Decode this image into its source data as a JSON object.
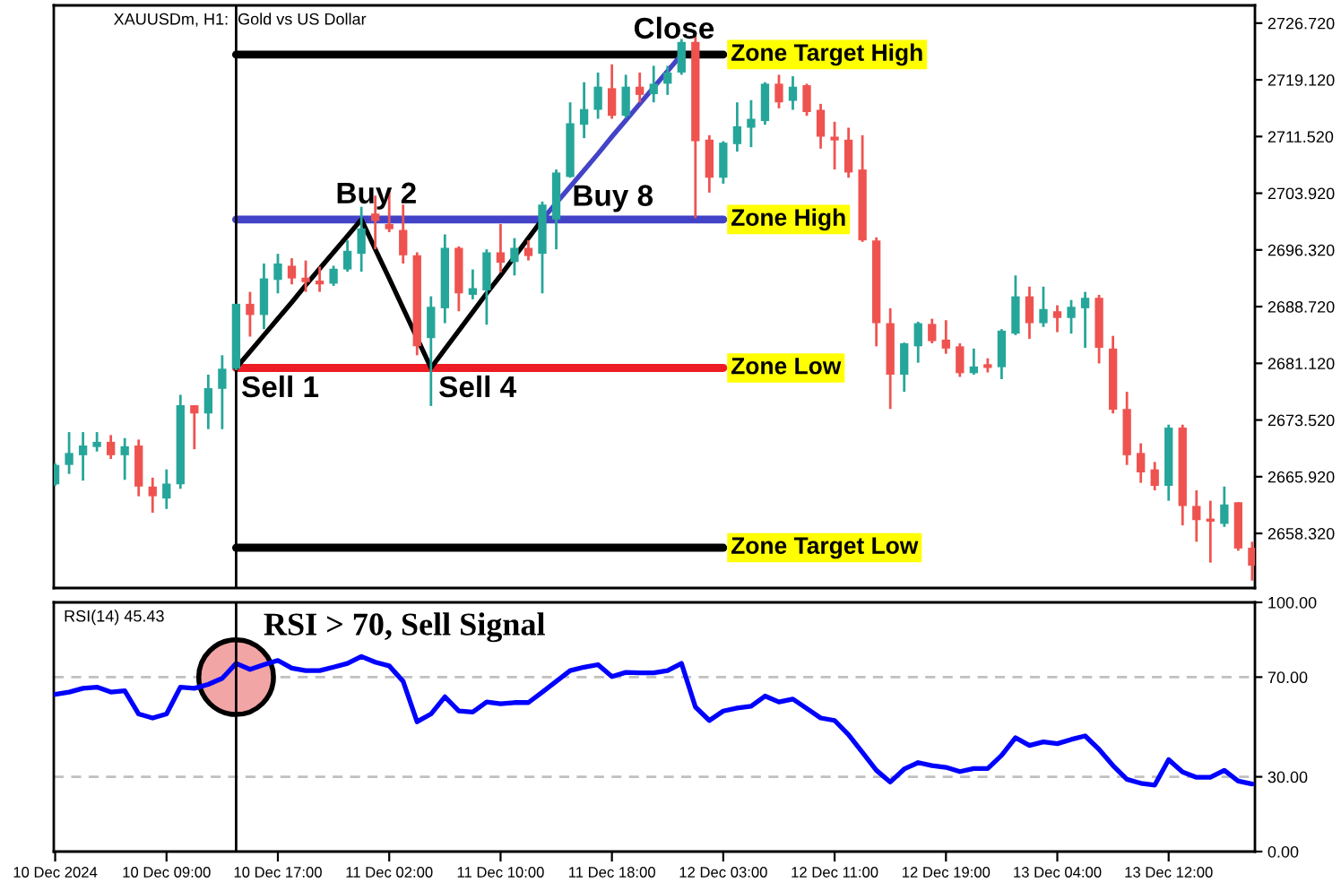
{
  "chart_data": [
    {
      "type": "candlestick",
      "title": "XAUUSDm, H1:  Gold vs US Dollar",
      "categories": [
        null,
        null,
        null,
        null,
        null,
        null,
        null,
        null,
        null,
        null,
        null,
        null,
        null,
        null,
        null,
        null,
        null,
        null,
        null,
        null,
        null,
        null,
        null,
        null,
        null,
        null,
        null,
        null,
        null,
        null,
        null,
        null,
        null,
        null,
        null,
        null,
        null,
        null,
        null,
        null,
        null,
        null,
        null,
        null,
        null,
        null,
        null,
        null,
        null,
        null,
        null,
        null,
        null,
        null,
        null,
        null,
        null,
        null,
        null,
        null,
        null,
        null,
        null,
        null,
        null,
        null,
        null,
        null,
        null,
        null,
        null,
        null,
        null,
        null,
        null,
        null,
        null,
        null,
        null,
        null,
        null,
        null,
        null,
        null,
        null,
        null,
        null
      ],
      "ohlc": [
        [
          2664.9,
          2667.7,
          2664.7,
          2667.5
        ],
        [
          2667.5,
          2671.9,
          2666.3,
          2669.1
        ],
        [
          2668.8,
          2671.9,
          2665.4,
          2670.1
        ],
        [
          2669.9,
          2671.9,
          2669.3,
          2670.6
        ],
        [
          2670.6,
          2671.5,
          2668.3,
          2668.8
        ],
        [
          2668.8,
          2671.1,
          2665.5,
          2670.0
        ],
        [
          2670.1,
          2670.9,
          2663.3,
          2664.6
        ],
        [
          2664.6,
          2665.8,
          2661.1,
          2663.3
        ],
        [
          2663.0,
          2666.9,
          2661.6,
          2665.0
        ],
        [
          2664.9,
          2676.9,
          2664.3,
          2675.5
        ],
        [
          2675.5,
          2675.5,
          2669.6,
          2674.4
        ],
        [
          2674.4,
          2679.6,
          2672.3,
          2677.8
        ],
        [
          2677.7,
          2682.2,
          2672.3,
          2680.4
        ],
        [
          2680.4,
          2689.1,
          2680.2,
          2689.1
        ],
        [
          2689.1,
          2690.7,
          2684.7,
          2687.6
        ],
        [
          2687.6,
          2694.5,
          2685.7,
          2692.5
        ],
        [
          2692.3,
          2695.8,
          2690.5,
          2694.5
        ],
        [
          2694.2,
          2695.2,
          2691.7,
          2692.5
        ],
        [
          2692.6,
          2694.9,
          2690.7,
          2692.0
        ],
        [
          2692.2,
          2694.1,
          2690.7,
          2691.7
        ],
        [
          2691.8,
          2694.2,
          2691.5,
          2693.8
        ],
        [
          2693.7,
          2697.6,
          2693.4,
          2696.2
        ],
        [
          2695.8,
          2702.1,
          2693.4,
          2699.2
        ],
        [
          2701.2,
          2703.6,
          2696.4,
          2700.2
        ],
        [
          2699.8,
          2704.5,
          2698.7,
          2699.1
        ],
        [
          2699.0,
          2702.4,
          2694.5,
          2695.6
        ],
        [
          2695.6,
          2696.0,
          2682.2,
          2683.4
        ],
        [
          2684.5,
          2690.1,
          2675.4,
          2688.7
        ],
        [
          2688.5,
          2698.4,
          2686.5,
          2696.6
        ],
        [
          2696.6,
          2696.8,
          2688.1,
          2690.5
        ],
        [
          2690.3,
          2693.7,
          2689.7,
          2691.2
        ],
        [
          2690.9,
          2696.4,
          2686.3,
          2696.0
        ],
        [
          2696.0,
          2699.8,
          2693.3,
          2694.6
        ],
        [
          2694.7,
          2697.9,
          2692.9,
          2696.6
        ],
        [
          2696.6,
          2697.6,
          2694.9,
          2695.5
        ],
        [
          2695.8,
          2702.8,
          2690.5,
          2702.4
        ],
        [
          2700.4,
          2707.1,
          2696.4,
          2706.7
        ],
        [
          2706.1,
          2716.1,
          2706.0,
          2713.3
        ],
        [
          2713.1,
          2718.8,
          2711.3,
          2715.2
        ],
        [
          2715.1,
          2720.1,
          2713.9,
          2718.2
        ],
        [
          2718.0,
          2721.2,
          2713.9,
          2714.3
        ],
        [
          2714.3,
          2719.8,
          2714.0,
          2718.2
        ],
        [
          2718.2,
          2720.1,
          2716.1,
          2717.1
        ],
        [
          2717.2,
          2721.0,
          2716.1,
          2718.6
        ],
        [
          2718.6,
          2721.0,
          2717.1,
          2720.1
        ],
        [
          2720.1,
          2724.6,
          2719.8,
          2724.2
        ],
        [
          2724.2,
          2725.1,
          2700.6,
          2710.9
        ],
        [
          2711.1,
          2711.7,
          2704.0,
          2706.0
        ],
        [
          2706.0,
          2710.9,
          2705.2,
          2710.7
        ],
        [
          2710.5,
          2716.1,
          2709.5,
          2712.9
        ],
        [
          2712.7,
          2716.4,
          2710.1,
          2713.9
        ],
        [
          2713.6,
          2718.8,
          2713.1,
          2718.6
        ],
        [
          2718.6,
          2719.8,
          2715.3,
          2716.1
        ],
        [
          2716.3,
          2719.6,
          2715.1,
          2718.2
        ],
        [
          2718.4,
          2718.6,
          2714.3,
          2714.8
        ],
        [
          2715.1,
          2715.9,
          2709.9,
          2711.5
        ],
        [
          2711.5,
          2713.5,
          2707.1,
          2711.0
        ],
        [
          2711.1,
          2712.7,
          2706.0,
          2706.7
        ],
        [
          2707.1,
          2711.7,
          2697.4,
          2697.6
        ],
        [
          2697.6,
          2698.0,
          2683.4,
          2686.5
        ],
        [
          2686.5,
          2688.5,
          2675.0,
          2679.6
        ],
        [
          2679.6,
          2683.9,
          2677.3,
          2683.8
        ],
        [
          2683.4,
          2686.7,
          2681.2,
          2686.5
        ],
        [
          2686.4,
          2687.1,
          2683.8,
          2684.1
        ],
        [
          2684.3,
          2686.9,
          2682.4,
          2683.1
        ],
        [
          2683.4,
          2683.8,
          2679.3,
          2679.8
        ],
        [
          2679.8,
          2683.1,
          2679.6,
          2680.7
        ],
        [
          2681.0,
          2681.8,
          2679.9,
          2680.5
        ],
        [
          2680.6,
          2685.7,
          2679.0,
          2685.5
        ],
        [
          2685.1,
          2692.9,
          2684.9,
          2690.1
        ],
        [
          2690.1,
          2691.4,
          2684.4,
          2686.5
        ],
        [
          2686.5,
          2691.4,
          2686.0,
          2688.4
        ],
        [
          2688.1,
          2688.9,
          2685.3,
          2687.2
        ],
        [
          2687.2,
          2689.6,
          2685.1,
          2688.7
        ],
        [
          2688.5,
          2690.7,
          2683.2,
          2689.9
        ],
        [
          2689.9,
          2690.3,
          2681.1,
          2683.2
        ],
        [
          2683.1,
          2684.8,
          2674.4,
          2674.9
        ],
        [
          2675.0,
          2677.3,
          2667.5,
          2668.8
        ],
        [
          2669.1,
          2670.4,
          2665.1,
          2666.5
        ],
        [
          2666.9,
          2667.9,
          2664.1,
          2664.7
        ],
        [
          2664.7,
          2672.9,
          2662.7,
          2672.5
        ],
        [
          2672.5,
          2672.9,
          2659.4,
          2662.0
        ],
        [
          2662.0,
          2664.1,
          2657.2,
          2660.1
        ],
        [
          2660.3,
          2662.7,
          2654.4,
          2659.9
        ],
        [
          2659.6,
          2664.6,
          2659.2,
          2662.2
        ],
        [
          2662.5,
          2662.5,
          2656.0,
          2656.3
        ],
        [
          2656.4,
          2657.2,
          2652.0,
          2654.0
        ]
      ],
      "colors": [
        "#26a69a",
        "#26a69a",
        "#26a69a",
        "#26a69a",
        "#ef5350",
        "#26a69a",
        "#ef5350",
        "#ef5350",
        "#26a69a",
        "#26a69a",
        "#ef5350",
        "#26a69a",
        "#26a69a",
        "#26a69a",
        "#ef5350",
        "#26a69a",
        "#26a69a",
        "#ef5350",
        "#ef5350",
        "#ef5350",
        "#26a69a",
        "#26a69a",
        "#26a69a",
        "#ef5350",
        "#ef5350",
        "#ef5350",
        "#ef5350",
        "#26a69a",
        "#26a69a",
        "#ef5350",
        "#26a69a",
        "#26a69a",
        "#ef5350",
        "#26a69a",
        "#ef5350",
        "#26a69a",
        "#26a69a",
        "#26a69a",
        "#26a69a",
        "#26a69a",
        "#ef5350",
        "#26a69a",
        "#ef5350",
        "#26a69a",
        "#26a69a",
        "#26a69a",
        "#ef5350",
        "#ef5350",
        "#26a69a",
        "#26a69a",
        "#26a69a",
        "#26a69a",
        "#ef5350",
        "#26a69a",
        "#ef5350",
        "#ef5350",
        "#ef5350",
        "#ef5350",
        "#ef5350",
        "#ef5350",
        "#ef5350",
        "#26a69a",
        "#26a69a",
        "#ef5350",
        "#ef5350",
        "#ef5350",
        "#26a69a",
        "#ef5350",
        "#26a69a",
        "#26a69a",
        "#ef5350",
        "#26a69a",
        "#ef5350",
        "#26a69a",
        "#26a69a",
        "#ef5350",
        "#ef5350",
        "#ef5350",
        "#ef5350",
        "#ef5350",
        "#26a69a",
        "#ef5350",
        "#ef5350",
        "#ef5350",
        "#26a69a",
        "#ef5350",
        "#ef5350"
      ],
      "series": [
        {
          "name": "Zone Target High",
          "type": "line",
          "color": "#000000",
          "values": [
            null,
            null,
            null,
            null,
            null,
            null,
            null,
            null,
            null,
            null,
            null,
            null,
            null,
            2722.5,
            2722.5,
            2722.5,
            2722.5,
            2722.5,
            2722.5,
            2722.5,
            2722.5,
            2722.5,
            2722.5,
            2722.5,
            2722.5,
            2722.5,
            2722.5,
            2722.5,
            2722.5,
            2722.5,
            2722.5,
            2722.5,
            2722.5,
            2722.5,
            2722.5,
            2722.5,
            2722.5,
            2722.5,
            2722.5,
            2722.5,
            2722.5,
            2722.5,
            2722.5,
            2722.5,
            2722.5,
            2722.5,
            2722.5,
            2722.5,
            2722.5,
            null,
            null,
            null,
            null,
            null,
            null,
            null,
            null,
            null,
            null,
            null,
            null,
            null,
            null,
            null,
            null,
            null,
            null,
            null,
            null,
            null,
            null,
            null,
            null,
            null,
            null,
            null,
            null,
            null,
            null,
            null,
            null,
            null,
            null,
            null,
            null,
            null,
            null
          ]
        },
        {
          "name": "Zone High",
          "type": "line",
          "color": "#4343c8",
          "values": [
            null,
            null,
            null,
            null,
            null,
            null,
            null,
            null,
            null,
            null,
            null,
            null,
            null,
            2700.4,
            2700.4,
            2700.4,
            2700.4,
            2700.4,
            2700.4,
            2700.4,
            2700.4,
            2700.4,
            2700.4,
            2700.4,
            2700.4,
            2700.4,
            2700.4,
            2700.4,
            2700.4,
            2700.4,
            2700.4,
            2700.4,
            2700.4,
            2700.4,
            2700.4,
            2700.4,
            2700.4,
            2700.4,
            2700.4,
            2700.4,
            2700.4,
            2700.4,
            2700.4,
            2700.4,
            2700.4,
            2700.4,
            2700.4,
            2700.4,
            2700.4,
            null,
            null,
            null,
            null,
            null,
            null,
            null,
            null,
            null,
            null,
            null,
            null,
            null,
            null,
            null,
            null,
            null,
            null,
            null,
            null,
            null,
            null,
            null,
            null,
            null,
            null,
            null,
            null,
            null,
            null,
            null,
            null,
            null,
            null,
            null,
            null,
            null,
            null
          ]
        },
        {
          "name": "Zone Low",
          "type": "line",
          "color": "#ed1c24",
          "values": [
            null,
            null,
            null,
            null,
            null,
            null,
            null,
            null,
            null,
            null,
            null,
            null,
            null,
            2680.5,
            2680.5,
            2680.5,
            2680.5,
            2680.5,
            2680.5,
            2680.5,
            2680.5,
            2680.5,
            2680.5,
            2680.5,
            2680.5,
            2680.5,
            2680.5,
            2680.5,
            2680.5,
            2680.5,
            2680.5,
            2680.5,
            2680.5,
            2680.5,
            2680.5,
            2680.5,
            2680.5,
            2680.5,
            2680.5,
            2680.5,
            2680.5,
            2680.5,
            2680.5,
            2680.5,
            2680.5,
            2680.5,
            2680.5,
            2680.5,
            2680.5,
            null,
            null,
            null,
            null,
            null,
            null,
            null,
            null,
            null,
            null,
            null,
            null,
            null,
            null,
            null,
            null,
            null,
            null,
            null,
            null,
            null,
            null,
            null,
            null,
            null,
            null,
            null,
            null,
            null,
            null,
            null,
            null,
            null,
            null,
            null,
            null,
            null,
            null
          ]
        },
        {
          "name": "Zone Target Low",
          "type": "line",
          "color": "#000000",
          "values": [
            null,
            null,
            null,
            null,
            null,
            null,
            null,
            null,
            null,
            null,
            null,
            null,
            null,
            2656.4,
            2656.4,
            2656.4,
            2656.4,
            2656.4,
            2656.4,
            2656.4,
            2656.4,
            2656.4,
            2656.4,
            2656.4,
            2656.4,
            2656.4,
            2656.4,
            2656.4,
            2656.4,
            2656.4,
            2656.4,
            2656.4,
            2656.4,
            2656.4,
            2656.4,
            2656.4,
            2656.4,
            2656.4,
            2656.4,
            2656.4,
            2656.4,
            2656.4,
            2656.4,
            2656.4,
            2656.4,
            2656.4,
            2656.4,
            2656.4,
            2656.4,
            null,
            null,
            null,
            null,
            null,
            null,
            null,
            null,
            null,
            null,
            null,
            null,
            null,
            null,
            null,
            null,
            null,
            null,
            null,
            null,
            null,
            null,
            null,
            null,
            null,
            null,
            null,
            null,
            null,
            null,
            null,
            null,
            null,
            null,
            null,
            null,
            null,
            null
          ]
        },
        {
          "type": "line",
          "color": "#000000",
          "values": [
            null,
            null,
            null,
            null,
            null,
            null,
            null,
            null,
            null,
            null,
            null,
            null,
            null,
            2680.5,
            2682.7,
            2684.9,
            2687.1,
            2689.3,
            2691.6,
            2693.8,
            2696.0,
            2698.2,
            2700.4,
            2696.4,
            2692.5,
            2688.5,
            2684.5,
            2680.5,
            2683.0,
            2685.5,
            2688.0,
            2690.5,
            2692.9,
            2695.4,
            2697.9,
            2700.4,
            null,
            null,
            null,
            null,
            null,
            null,
            null,
            null,
            null,
            null,
            null,
            null,
            null,
            null,
            null,
            null,
            null,
            null,
            null,
            null,
            null,
            null,
            null,
            null,
            null,
            null,
            null,
            null,
            null,
            null,
            null,
            null,
            null,
            null,
            null,
            null,
            null,
            null,
            null,
            null,
            null,
            null,
            null,
            null,
            null,
            null,
            null,
            null,
            null,
            null,
            null
          ]
        },
        {
          "type": "line",
          "color": "#4343c8",
          "values": [
            null,
            null,
            null,
            null,
            null,
            null,
            null,
            null,
            null,
            null,
            null,
            null,
            null,
            null,
            null,
            null,
            null,
            null,
            null,
            null,
            null,
            null,
            null,
            null,
            null,
            null,
            null,
            null,
            null,
            null,
            null,
            null,
            null,
            null,
            null,
            2700.4,
            2702.6,
            2704.8,
            2707.0,
            2709.2,
            2711.5,
            2713.7,
            2715.9,
            2718.1,
            2720.3,
            2722.5,
            null,
            null,
            null,
            null,
            null,
            null,
            null,
            null,
            null,
            null,
            null,
            null,
            null,
            null,
            null,
            null,
            null,
            null,
            null,
            null,
            null,
            null,
            null,
            null,
            null,
            null,
            null,
            null,
            null,
            null,
            null,
            null,
            null,
            null,
            null,
            null,
            null,
            null,
            null,
            null,
            null
          ]
        }
      ],
      "annotations": [
        {
          "text": "Sell 1",
          "y": 2680.5
        },
        {
          "text": "Buy 2",
          "y": 2700.4
        },
        {
          "text": "Sell 4",
          "y": 2680.5
        },
        {
          "text": "Buy 8",
          "y": 2700.4
        },
        {
          "text": "Close",
          "y": 2722.5
        }
      ],
      "ylim": [
        2651.0,
        2729.1
      ],
      "yticks": [
        {
          "value": 2658.32,
          "label": "2658.320"
        },
        {
          "value": 2665.92,
          "label": "2665.920"
        },
        {
          "value": 2673.52,
          "label": "2673.520"
        },
        {
          "value": 2681.12,
          "label": "2681.120"
        },
        {
          "value": 2688.72,
          "label": "2688.720"
        },
        {
          "value": 2696.32,
          "label": "2696.320"
        },
        {
          "value": 2703.92,
          "label": "2703.920"
        },
        {
          "value": 2711.52,
          "label": "2711.520"
        },
        {
          "value": 2719.12,
          "label": "2719.120"
        },
        {
          "value": 2726.72,
          "label": "2726.720"
        }
      ]
    },
    {
      "type": "line",
      "title": "RSI(14) 45.43",
      "categories": [
        "10 Dec 2024",
        null,
        null,
        null,
        null,
        null,
        null,
        null,
        "10 Dec 09:00",
        null,
        null,
        null,
        null,
        null,
        null,
        null,
        "10 Dec 17:00",
        null,
        null,
        null,
        null,
        null,
        null,
        null,
        "11 Dec 02:00",
        null,
        null,
        null,
        null,
        null,
        null,
        null,
        "11 Dec 10:00",
        null,
        null,
        null,
        null,
        null,
        null,
        null,
        "11 Dec 18:00",
        null,
        null,
        null,
        null,
        null,
        null,
        null,
        "12 Dec 03:00",
        null,
        null,
        null,
        null,
        null,
        null,
        null,
        "12 Dec 11:00",
        null,
        null,
        null,
        null,
        null,
        null,
        null,
        "12 Dec 19:00",
        null,
        null,
        null,
        null,
        null,
        null,
        null,
        "13 Dec 04:00",
        null,
        null,
        null,
        null,
        null,
        null,
        null,
        "13 Dec 12:00",
        null,
        null,
        null,
        null,
        null,
        null
      ],
      "series": [
        {
          "color": "#0000ff",
          "values": [
            63.1,
            64.0,
            65.5,
            66.0,
            64.0,
            64.5,
            55.2,
            53.6,
            55.2,
            66.0,
            65.5,
            67.1,
            69.5,
            75.5,
            73.1,
            75.0,
            76.7,
            73.6,
            72.6,
            72.6,
            74.0,
            75.5,
            78.3,
            76.0,
            74.5,
            68.3,
            52.1,
            55.2,
            62.1,
            56.4,
            56.0,
            60.0,
            59.3,
            59.8,
            59.8,
            64.0,
            68.3,
            72.6,
            74.0,
            75.0,
            70.2,
            71.9,
            71.7,
            71.7,
            72.6,
            75.5,
            58.0,
            52.6,
            56.4,
            57.6,
            58.3,
            62.4,
            60.0,
            61.2,
            57.4,
            53.6,
            52.6,
            46.9,
            39.8,
            32.6,
            27.9,
            33.1,
            35.7,
            34.5,
            33.8,
            32.1,
            33.3,
            33.3,
            38.6,
            45.7,
            42.6,
            44.0,
            43.3,
            45.0,
            46.4,
            41.0,
            34.5,
            29.0,
            27.4,
            26.7,
            36.9,
            31.9,
            29.8,
            29.8,
            32.6,
            28.3,
            27.1
          ]
        },
        {
          "type": "scatter",
          "marker": "circle",
          "color": "#f2a5a5",
          "values": [
            null,
            null,
            null,
            null,
            null,
            null,
            null,
            null,
            null,
            null,
            null,
            null,
            null,
            70,
            null,
            null,
            null,
            null,
            null,
            null,
            null,
            null,
            null,
            null,
            null,
            null,
            null,
            null,
            null,
            null,
            null,
            null,
            null,
            null,
            null,
            null,
            null,
            null,
            null,
            null,
            null,
            null,
            null,
            null,
            null,
            null,
            null,
            null,
            null,
            null,
            null,
            null,
            null,
            null,
            null,
            null,
            null,
            null,
            null,
            null,
            null,
            null,
            null,
            null,
            null,
            null,
            null,
            null,
            null,
            null,
            null,
            null,
            null,
            null,
            null,
            null,
            null,
            null,
            null,
            null,
            null,
            null,
            null,
            null,
            null,
            null,
            null
          ]
        }
      ],
      "annotations": [
        {
          "text": "RSI > 70, Sell Signal",
          "y": 70
        }
      ],
      "ref_lines": [
        {
          "axis": "y",
          "value": 70,
          "color": "#c0c0c0",
          "line_style": "dashed"
        },
        {
          "axis": "y",
          "value": 30,
          "color": "#c0c0c0",
          "line_style": "dashed"
        }
      ],
      "ylim": [
        0,
        100
      ],
      "yticks": [
        {
          "value": 0,
          "label": "0.00"
        },
        {
          "value": 30,
          "label": "30.00"
        },
        {
          "value": 70,
          "label": "70.00"
        },
        {
          "value": 100,
          "label": "100.00"
        }
      ]
    }
  ]
}
